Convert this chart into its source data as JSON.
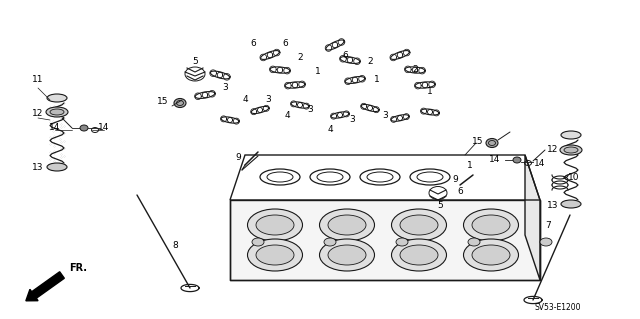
{
  "bg_color": "#ffffff",
  "diagram_code": "SV53-E1200",
  "fig_width": 6.4,
  "fig_height": 3.19,
  "dpi": 100,
  "text_color": "#000000",
  "draw_color": "#1a1a1a",
  "font_size": 6.5
}
